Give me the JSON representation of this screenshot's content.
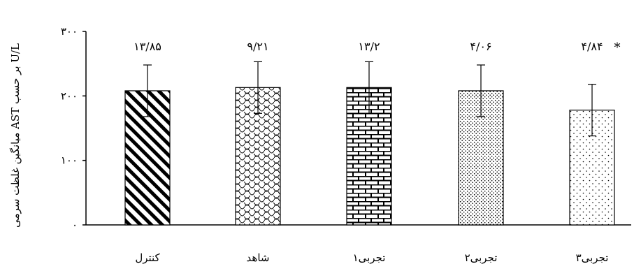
{
  "chart_data": {
    "type": "bar",
    "categories": [
      "کنترل",
      "شاهد",
      "تجربی۱",
      "تجربی۲",
      "تجربی۳"
    ],
    "values": [
      208,
      213,
      213,
      208,
      178
    ],
    "error_bars": [
      40,
      40,
      40,
      40,
      40
    ],
    "value_labels": [
      "۱۳/۸۵",
      "۹/۲۱",
      "۱۳/۲",
      "۴/۰۶",
      "۴/۸۴"
    ],
    "significance_marks": [
      "",
      "",
      "",
      "",
      "*"
    ],
    "patterns": [
      "diagonal-stripes",
      "scales",
      "bricks",
      "dense-dots",
      "sparse-dots"
    ],
    "yticks": [
      0,
      100,
      200,
      300
    ],
    "ytick_labels": [
      "۰",
      "۱۰۰",
      "۲۰۰",
      "۳۰۰"
    ],
    "ylim": [
      0,
      300
    ],
    "ylabel": "میانگین غلظت سرمی AST بر حسب U/L",
    "xlabel": "",
    "title": "",
    "grid": false,
    "legend": "none"
  }
}
